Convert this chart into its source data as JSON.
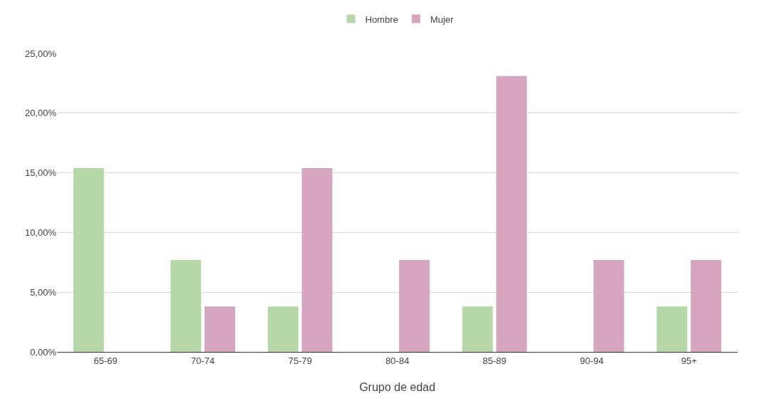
{
  "chart_data": {
    "type": "bar",
    "xlabel": "Grupo de edad",
    "categories": [
      "65-69",
      "70-74",
      "75-79",
      "80-84",
      "85-89",
      "90-94",
      "95+"
    ],
    "series": [
      {
        "name": "Hombre",
        "color": "#b6d7a8",
        "values": [
          15.4,
          7.7,
          3.8,
          0,
          3.8,
          0,
          3.8
        ]
      },
      {
        "name": "Mujer",
        "color": "#d5a6bd",
        "values": [
          0,
          3.8,
          15.4,
          7.7,
          23.1,
          7.7,
          7.7
        ]
      }
    ],
    "ylim": [
      0,
      25
    ],
    "yticks": [
      {
        "value": 0,
        "label": "0,00%"
      },
      {
        "value": 5,
        "label": "5,00%"
      },
      {
        "value": 10,
        "label": "10,00%"
      },
      {
        "value": 15,
        "label": "15,00%"
      },
      {
        "value": 20,
        "label": "20,00%"
      },
      {
        "value": 25,
        "label": "25,00%"
      }
    ],
    "grid": "y",
    "legend": "top"
  }
}
